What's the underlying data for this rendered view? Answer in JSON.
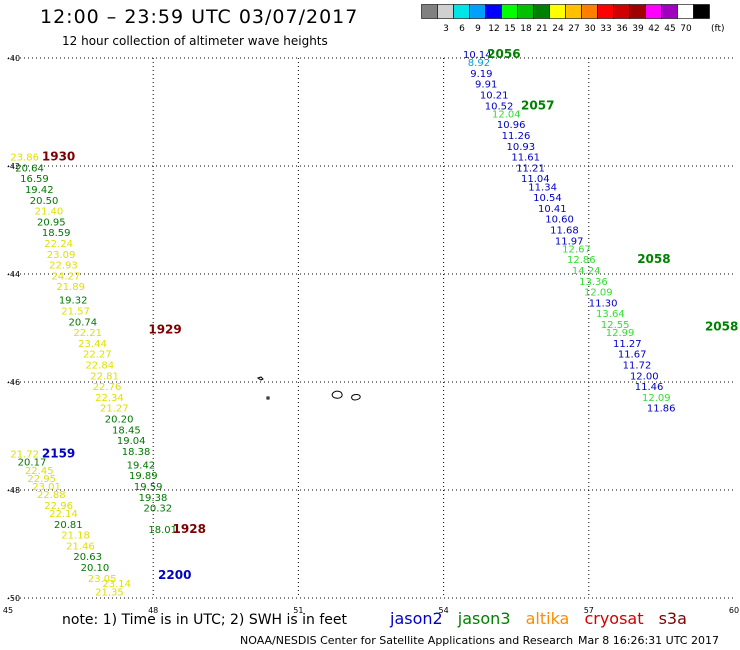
{
  "title": "12:00 – 23:59 UTC 03/07/2017",
  "subtitle": "12 hour collection of altimeter wave heights",
  "legend": {
    "unit": "(ft)",
    "swatches": [
      {
        "color": "#808080",
        "label": ""
      },
      {
        "color": "#d0d0d0",
        "label": "3"
      },
      {
        "color": "#00e5e5",
        "label": "6"
      },
      {
        "color": "#00a0ff",
        "label": "9"
      },
      {
        "color": "#0000ff",
        "label": "12"
      },
      {
        "color": "#00ff00",
        "label": "15"
      },
      {
        "color": "#00c000",
        "label": "18"
      },
      {
        "color": "#008000",
        "label": "21"
      },
      {
        "color": "#ffff00",
        "label": "24"
      },
      {
        "color": "#ffc000",
        "label": "27"
      },
      {
        "color": "#ff8000",
        "label": "30"
      },
      {
        "color": "#ff0000",
        "label": "33"
      },
      {
        "color": "#d00000",
        "label": "36"
      },
      {
        "color": "#a00000",
        "label": "39"
      },
      {
        "color": "#ff00ff",
        "label": "42"
      },
      {
        "color": "#a000c0",
        "label": "45"
      },
      {
        "color": "#ffffff",
        "label": "70"
      },
      {
        "color": "#000000",
        "label": ""
      }
    ]
  },
  "axes": {
    "lon_labels": [
      "45",
      "48",
      "51",
      "54",
      "57",
      "60"
    ],
    "lat_labels": [
      "-40",
      "-42",
      "-44",
      "-46",
      "-48",
      "-50"
    ]
  },
  "colors": {
    "jason2": "#0000c8",
    "jason3": "#008000",
    "altika": "#ff8c00",
    "cryosat": "#d00000",
    "s3a": "#800000",
    "wave_yellow": "#e0e000",
    "wave_lime": "#33dd33",
    "wave_green": "#007800",
    "wave_blue": "#0000c8",
    "wave_cyan": "#00a0d8"
  },
  "pass_labels": [
    {
      "text": "2056",
      "lon": 54.9,
      "lat": -40.0,
      "color": "jason3"
    },
    {
      "text": "2057",
      "lon": 55.6,
      "lat": -40.95,
      "color": "jason3"
    },
    {
      "text": "2058",
      "lon": 58.0,
      "lat": -43.8,
      "color": "jason3"
    },
    {
      "text": "2058",
      "lon": 59.4,
      "lat": -45.05,
      "color": "jason3"
    },
    {
      "text": "1930",
      "lon": 45.7,
      "lat": -41.9,
      "color": "s3a"
    },
    {
      "text": "1929",
      "lon": 47.9,
      "lat": -45.1,
      "color": "s3a"
    },
    {
      "text": "2159",
      "lon": 45.7,
      "lat": -47.4,
      "color": "jason2"
    },
    {
      "text": "1928",
      "lon": 48.4,
      "lat": -48.8,
      "color": "s3a"
    },
    {
      "text": "2200",
      "lon": 48.1,
      "lat": -49.65,
      "color": "jason2"
    }
  ],
  "wave_heights": [
    {
      "v": "10.14",
      "lon": 54.4,
      "lat": -40.0,
      "c": "wave_blue"
    },
    {
      "v": "8.92",
      "lon": 54.5,
      "lat": -40.15,
      "c": "wave_cyan"
    },
    {
      "v": "9.19",
      "lon": 54.55,
      "lat": -40.35,
      "c": "wave_blue"
    },
    {
      "v": "9.91",
      "lon": 54.65,
      "lat": -40.55,
      "c": "wave_blue"
    },
    {
      "v": "10.21",
      "lon": 54.75,
      "lat": -40.75,
      "c": "wave_blue"
    },
    {
      "v": "10.52",
      "lon": 54.85,
      "lat": -40.95,
      "c": "wave_blue"
    },
    {
      "v": "12.04",
      "lon": 55.0,
      "lat": -41.1,
      "c": "wave_lime"
    },
    {
      "v": "10.96",
      "lon": 55.1,
      "lat": -41.3,
      "c": "wave_blue"
    },
    {
      "v": "11.26",
      "lon": 55.2,
      "lat": -41.5,
      "c": "wave_blue"
    },
    {
      "v": "10.93",
      "lon": 55.3,
      "lat": -41.7,
      "c": "wave_blue"
    },
    {
      "v": "11.61",
      "lon": 55.4,
      "lat": -41.9,
      "c": "wave_blue"
    },
    {
      "v": "11.21",
      "lon": 55.5,
      "lat": -42.1,
      "c": "wave_blue"
    },
    {
      "v": "11.04",
      "lon": 55.6,
      "lat": -42.3,
      "c": "wave_blue"
    },
    {
      "v": "11.34",
      "lon": 55.75,
      "lat": -42.45,
      "c": "wave_blue"
    },
    {
      "v": "10.54",
      "lon": 55.85,
      "lat": -42.65,
      "c": "wave_blue"
    },
    {
      "v": "10.41",
      "lon": 55.95,
      "lat": -42.85,
      "c": "wave_blue"
    },
    {
      "v": "10.60",
      "lon": 56.1,
      "lat": -43.05,
      "c": "wave_blue"
    },
    {
      "v": "11.68",
      "lon": 56.2,
      "lat": -43.25,
      "c": "wave_blue"
    },
    {
      "v": "11.97",
      "lon": 56.3,
      "lat": -43.45,
      "c": "wave_blue"
    },
    {
      "v": "12.67",
      "lon": 56.45,
      "lat": -43.6,
      "c": "wave_lime"
    },
    {
      "v": "12.86",
      "lon": 56.55,
      "lat": -43.8,
      "c": "wave_lime"
    },
    {
      "v": "14.24",
      "lon": 56.65,
      "lat": -44.0,
      "c": "wave_lime"
    },
    {
      "v": "13.36",
      "lon": 56.8,
      "lat": -44.2,
      "c": "wave_lime"
    },
    {
      "v": "12.09",
      "lon": 56.9,
      "lat": -44.4,
      "c": "wave_lime"
    },
    {
      "v": "11.30",
      "lon": 57.0,
      "lat": -44.6,
      "c": "wave_blue"
    },
    {
      "v": "13.64",
      "lon": 57.15,
      "lat": -44.8,
      "c": "wave_lime"
    },
    {
      "v": "12.55",
      "lon": 57.25,
      "lat": -45.0,
      "c": "wave_lime"
    },
    {
      "v": "12.99",
      "lon": 57.35,
      "lat": -45.15,
      "c": "wave_lime"
    },
    {
      "v": "11.27",
      "lon": 57.5,
      "lat": -45.35,
      "c": "wave_blue"
    },
    {
      "v": "11.67",
      "lon": 57.6,
      "lat": -45.55,
      "c": "wave_blue"
    },
    {
      "v": "11.72",
      "lon": 57.7,
      "lat": -45.75,
      "c": "wave_blue"
    },
    {
      "v": "12.00",
      "lon": 57.85,
      "lat": -45.95,
      "c": "wave_blue"
    },
    {
      "v": "11.46",
      "lon": 57.95,
      "lat": -46.15,
      "c": "wave_blue"
    },
    {
      "v": "12.09",
      "lon": 58.1,
      "lat": -46.35,
      "c": "wave_lime"
    },
    {
      "v": "11.86",
      "lon": 58.2,
      "lat": -46.55,
      "c": "wave_blue"
    },
    {
      "v": "23.86",
      "lon": 45.05,
      "lat": -41.9,
      "c": "wave_yellow"
    },
    {
      "v": "20.64",
      "lon": 45.15,
      "lat": -42.1,
      "c": "wave_green"
    },
    {
      "v": "16.59",
      "lon": 45.25,
      "lat": -42.3,
      "c": "wave_green"
    },
    {
      "v": "19.42",
      "lon": 45.35,
      "lat": -42.5,
      "c": "wave_green"
    },
    {
      "v": "20.50",
      "lon": 45.45,
      "lat": -42.7,
      "c": "wave_green"
    },
    {
      "v": "21.40",
      "lon": 45.55,
      "lat": -42.9,
      "c": "wave_yellow"
    },
    {
      "v": "20.95",
      "lon": 45.6,
      "lat": -43.1,
      "c": "wave_green"
    },
    {
      "v": "18.59",
      "lon": 45.7,
      "lat": -43.3,
      "c": "wave_green"
    },
    {
      "v": "22.24",
      "lon": 45.75,
      "lat": -43.5,
      "c": "wave_yellow"
    },
    {
      "v": "23.09",
      "lon": 45.8,
      "lat": -43.7,
      "c": "wave_yellow"
    },
    {
      "v": "22.93",
      "lon": 45.85,
      "lat": -43.9,
      "c": "wave_yellow"
    },
    {
      "v": "24.27",
      "lon": 45.9,
      "lat": -44.1,
      "c": "wave_yellow"
    },
    {
      "v": "21.89",
      "lon": 46.0,
      "lat": -44.3,
      "c": "wave_yellow"
    },
    {
      "v": "19.32",
      "lon": 46.05,
      "lat": -44.55,
      "c": "wave_green"
    },
    {
      "v": "21.57",
      "lon": 46.1,
      "lat": -44.75,
      "c": "wave_yellow"
    },
    {
      "v": "20.74",
      "lon": 46.25,
      "lat": -44.95,
      "c": "wave_green"
    },
    {
      "v": "22.21",
      "lon": 46.35,
      "lat": -45.15,
      "c": "wave_yellow"
    },
    {
      "v": "23.44",
      "lon": 46.45,
      "lat": -45.35,
      "c": "wave_yellow"
    },
    {
      "v": "22.27",
      "lon": 46.55,
      "lat": -45.55,
      "c": "wave_yellow"
    },
    {
      "v": "22.84",
      "lon": 46.6,
      "lat": -45.75,
      "c": "wave_yellow"
    },
    {
      "v": "22.81",
      "lon": 46.7,
      "lat": -45.95,
      "c": "wave_yellow"
    },
    {
      "v": "22.76",
      "lon": 46.75,
      "lat": -46.15,
      "c": "wave_yellow"
    },
    {
      "v": "22.34",
      "lon": 46.8,
      "lat": -46.35,
      "c": "wave_yellow"
    },
    {
      "v": "21.27",
      "lon": 46.9,
      "lat": -46.55,
      "c": "wave_yellow"
    },
    {
      "v": "20.20",
      "lon": 47.0,
      "lat": -46.75,
      "c": "wave_green"
    },
    {
      "v": "18.45",
      "lon": 47.15,
      "lat": -46.95,
      "c": "wave_green"
    },
    {
      "v": "19.04",
      "lon": 47.25,
      "lat": -47.15,
      "c": "wave_green"
    },
    {
      "v": "18.38",
      "lon": 47.35,
      "lat": -47.35,
      "c": "wave_green"
    },
    {
      "v": "19.42",
      "lon": 47.45,
      "lat": -47.6,
      "c": "wave_green"
    },
    {
      "v": "19.89",
      "lon": 47.5,
      "lat": -47.8,
      "c": "wave_green"
    },
    {
      "v": "19.59",
      "lon": 47.6,
      "lat": -48.0,
      "c": "wave_green"
    },
    {
      "v": "19.38",
      "lon": 47.7,
      "lat": -48.2,
      "c": "wave_green"
    },
    {
      "v": "20.32",
      "lon": 47.8,
      "lat": -48.4,
      "c": "wave_green"
    },
    {
      "v": "18.01",
      "lon": 47.9,
      "lat": -48.8,
      "c": "wave_green"
    },
    {
      "v": "21.72",
      "lon": 45.05,
      "lat": -47.4,
      "c": "wave_yellow"
    },
    {
      "v": "20.17",
      "lon": 45.2,
      "lat": -47.55,
      "c": "wave_green"
    },
    {
      "v": "22.45",
      "lon": 45.35,
      "lat": -47.7,
      "c": "wave_yellow"
    },
    {
      "v": "22.95",
      "lon": 45.4,
      "lat": -47.85,
      "c": "wave_yellow"
    },
    {
      "v": "23.01",
      "lon": 45.5,
      "lat": -48.0,
      "c": "wave_yellow"
    },
    {
      "v": "22.88",
      "lon": 45.6,
      "lat": -48.15,
      "c": "wave_yellow"
    },
    {
      "v": "22.96",
      "lon": 45.75,
      "lat": -48.35,
      "c": "wave_yellow"
    },
    {
      "v": "22.14",
      "lon": 45.85,
      "lat": -48.5,
      "c": "wave_yellow"
    },
    {
      "v": "20.81",
      "lon": 45.95,
      "lat": -48.7,
      "c": "wave_green"
    },
    {
      "v": "21.18",
      "lon": 46.1,
      "lat": -48.9,
      "c": "wave_yellow"
    },
    {
      "v": "21.46",
      "lon": 46.2,
      "lat": -49.1,
      "c": "wave_yellow"
    },
    {
      "v": "20.63",
      "lon": 46.35,
      "lat": -49.3,
      "c": "wave_green"
    },
    {
      "v": "20.10",
      "lon": 46.5,
      "lat": -49.5,
      "c": "wave_green"
    },
    {
      "v": "23.05",
      "lon": 46.65,
      "lat": -49.7,
      "c": "wave_yellow"
    },
    {
      "v": "23.14",
      "lon": 46.95,
      "lat": -49.8,
      "c": "wave_yellow"
    },
    {
      "v": "21.35",
      "lon": 46.8,
      "lat": -49.95,
      "c": "wave_yellow"
    }
  ],
  "note": "note: 1) Time is in UTC; 2) SWH is in feet",
  "satellites": [
    {
      "name": "jason2",
      "color": "jason2"
    },
    {
      "name": "jason3",
      "color": "jason3"
    },
    {
      "name": "altika",
      "color": "altika"
    },
    {
      "name": "cryosat",
      "color": "cryosat"
    },
    {
      "name": "s3a",
      "color": "s3a"
    }
  ],
  "footer": {
    "credit": "NOAA/NESDIS Center for Satellite Applications and Research",
    "timestamp": "Mar  8 16:26:31 UTC 2017"
  }
}
